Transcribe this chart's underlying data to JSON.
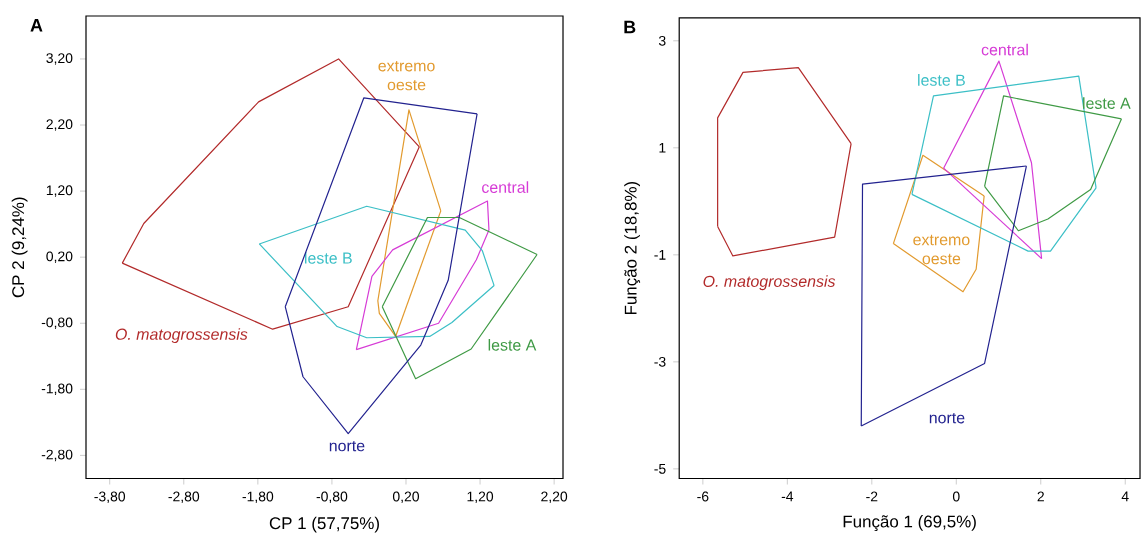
{
  "chart_data": [
    {
      "type": "line",
      "title": "A",
      "xlabel": "CP 1 (57,75%)",
      "ylabel": "CP 2 (9,24%)",
      "xlim": [
        -4.12,
        2.32
      ],
      "ylim": [
        -3.15,
        3.85
      ],
      "xticks": [
        {
          "value": -3.8,
          "label": "-3,80"
        },
        {
          "value": -2.8,
          "label": "-2,80"
        },
        {
          "value": -1.8,
          "label": "-1,80"
        },
        {
          "value": -0.8,
          "label": "-0,80"
        },
        {
          "value": 0.2,
          "label": "0,20"
        },
        {
          "value": 1.2,
          "label": "1,20"
        },
        {
          "value": 2.2,
          "label": "2,20"
        }
      ],
      "yticks": [
        {
          "value": -2.8,
          "label": "-2,80"
        },
        {
          "value": -1.8,
          "label": "-1,80"
        },
        {
          "value": -0.8,
          "label": "-0,80"
        },
        {
          "value": 0.2,
          "label": "0,20"
        },
        {
          "value": 1.2,
          "label": "1,20"
        },
        {
          "value": 2.2,
          "label": "2,20"
        },
        {
          "value": 3.2,
          "label": "3,20"
        }
      ],
      "series": [
        {
          "name": "*O. matogrossensis*",
          "color": "#b22a2a",
          "x": [
            -3.63,
            -3.34,
            -1.79,
            -0.71,
            0.38
          ],
          "values": [
            0.11,
            0.71,
            2.55,
            3.2,
            1.87
          ]
        },
        {
          "color": "#b22a2a",
          "x": [
            -3.63,
            -1.6,
            -0.58,
            0.38
          ],
          "values": [
            0.11,
            -0.89,
            -0.55,
            1.87
          ]
        },
        {
          "name": "extremo oeste",
          "color": "#e29a2e",
          "x": [
            0.06,
            -0.16,
            -0.18,
            0.24,
            0.67
          ],
          "values": [
            -1.0,
            -0.65,
            -0.46,
            2.43,
            0.9
          ]
        },
        {
          "color": "#e29a2e",
          "x": [
            0.06,
            0.67
          ],
          "values": [
            -1.0,
            0.9
          ]
        },
        {
          "name": "central",
          "color": "#d63bd6",
          "x": [
            -0.47,
            -0.26,
            0.02,
            1.3,
            1.32
          ],
          "values": [
            -1.2,
            -0.09,
            0.31,
            1.05,
            0.61
          ]
        },
        {
          "color": "#d63bd6",
          "x": [
            -0.47,
            0.64,
            1.15,
            1.32
          ],
          "values": [
            -1.2,
            -0.8,
            0.16,
            0.61
          ]
        },
        {
          "name": "leste B",
          "color": "#3bbfc6",
          "x": [
            -1.78,
            -0.33,
            1.0,
            1.23,
            1.39
          ],
          "values": [
            0.4,
            0.97,
            0.61,
            0.3,
            -0.23
          ]
        },
        {
          "color": "#3bbfc6",
          "x": [
            -1.78,
            -0.73,
            -0.33,
            0.52,
            0.82,
            1.39
          ],
          "values": [
            0.4,
            -0.85,
            -1.02,
            -1.0,
            -0.79,
            -0.23
          ]
        },
        {
          "name": "leste A",
          "color": "#3f9a45",
          "x": [
            -0.12,
            0.49,
            0.92,
            1.97
          ],
          "values": [
            -0.55,
            0.8,
            0.8,
            0.24
          ]
        },
        {
          "color": "#3f9a45",
          "x": [
            -0.12,
            0.33,
            1.08,
            1.97
          ],
          "values": [
            -0.55,
            -1.64,
            -1.19,
            0.24
          ]
        },
        {
          "name": "norte",
          "color": "#22228f",
          "x": [
            -1.43,
            -0.37,
            1.16
          ],
          "values": [
            -0.55,
            2.61,
            2.37
          ]
        },
        {
          "color": "#22228f",
          "x": [
            -1.43,
            -1.19,
            -0.58,
            0.4,
            0.77,
            1.16
          ],
          "values": [
            -0.55,
            -1.61,
            -2.47,
            -1.13,
            -0.15,
            2.37
          ]
        }
      ]
    },
    {
      "type": "line",
      "title": "B",
      "xlabel": "Função 1 (69,5%)",
      "ylabel": "Função 2 (18,8%)",
      "xlim": [
        -6.56,
        4.35
      ],
      "ylim": [
        -5.18,
        3.43
      ],
      "xticks": [
        -6,
        -4,
        -2,
        0,
        2,
        4
      ],
      "yticks": [
        -5,
        -3,
        -1,
        1,
        3
      ],
      "series": [
        {
          "name": "*O. matogrossensis*",
          "color": "#b22a2a",
          "x": [
            -5.65,
            -5.65,
            -5.05,
            -3.74,
            -2.49
          ],
          "values": [
            -0.47,
            1.56,
            2.41,
            2.5,
            1.08
          ]
        },
        {
          "color": "#b22a2a",
          "x": [
            -5.65,
            -5.29,
            -2.88,
            -2.49
          ],
          "values": [
            -0.47,
            -1.02,
            -0.67,
            1.08
          ]
        },
        {
          "name": "extremo oeste",
          "color": "#e29a2e",
          "x": [
            -1.49,
            -0.79,
            0.66
          ],
          "values": [
            -0.79,
            0.86,
            0.1
          ]
        },
        {
          "color": "#e29a2e",
          "x": [
            -1.49,
            0.16,
            0.47,
            0.66
          ],
          "values": [
            -0.79,
            -1.69,
            -1.27,
            0.1
          ]
        },
        {
          "name": "central",
          "color": "#d63bd6",
          "x": [
            -0.3,
            1.01,
            1.78,
            2.02
          ],
          "values": [
            0.62,
            2.62,
            0.72,
            -1.07
          ]
        },
        {
          "color": "#d63bd6",
          "x": [
            -0.3,
            2.02
          ],
          "values": [
            0.62,
            -1.07
          ]
        },
        {
          "name": "leste B",
          "color": "#3bbfc6",
          "x": [
            -1.05,
            -0.54,
            2.9,
            3.31
          ],
          "values": [
            0.13,
            1.97,
            2.34,
            0.25
          ]
        },
        {
          "color": "#3bbfc6",
          "x": [
            -1.05,
            1.7,
            2.23,
            3.31
          ],
          "values": [
            0.13,
            -0.93,
            -0.93,
            0.25
          ]
        },
        {
          "name": "leste A",
          "color": "#3f9a45",
          "x": [
            0.67,
            1.12,
            3.91
          ],
          "values": [
            0.28,
            1.97,
            1.54
          ]
        },
        {
          "color": "#3f9a45",
          "x": [
            0.67,
            1.47,
            2.17,
            3.18,
            3.91
          ],
          "values": [
            0.28,
            -0.55,
            -0.33,
            0.22,
            1.54
          ]
        },
        {
          "name": "norte",
          "color": "#22228f",
          "x": [
            -2.25,
            -2.22,
            1.66
          ],
          "values": [
            -4.2,
            0.32,
            0.66
          ]
        },
        {
          "color": "#22228f",
          "x": [
            -2.25,
            0.67,
            1.66
          ],
          "values": [
            -4.2,
            -3.03,
            0.66
          ]
        }
      ]
    }
  ]
}
